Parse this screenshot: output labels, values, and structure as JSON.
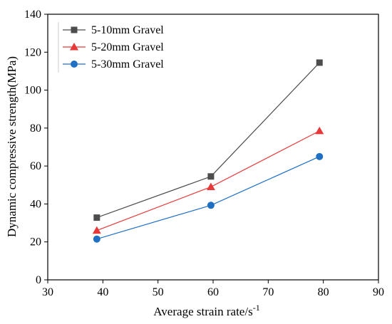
{
  "chart_data": {
    "type": "line",
    "title": "",
    "xlabel": "Average strain rate/s",
    "xlabel_superscript": "-1",
    "ylabel": "Dynamic compressive strength(MPa)",
    "xlim": [
      30,
      90
    ],
    "ylim": [
      0,
      140
    ],
    "xticks": [
      "30",
      "40",
      "50",
      "60",
      "70",
      "80",
      "90"
    ],
    "yticks": [
      "0",
      "20",
      "40",
      "60",
      "80",
      "100",
      "120",
      "140"
    ],
    "grid": false,
    "legend_position": "top-left",
    "series": [
      {
        "name": "5-10mm Gravel",
        "marker": "square",
        "color": "#4d4d4d",
        "x": [
          38.9,
          59.6,
          79.3
        ],
        "y": [
          32.8,
          54.5,
          114.5
        ]
      },
      {
        "name": "5-20mm Gravel",
        "marker": "triangle",
        "color": "#e8393a",
        "x": [
          38.9,
          59.6,
          79.3
        ],
        "y": [
          26.0,
          49.0,
          78.5
        ]
      },
      {
        "name": "5-30mm Gravel",
        "marker": "circle",
        "color": "#1f6fc5",
        "x": [
          38.9,
          59.6,
          79.3
        ],
        "y": [
          21.5,
          39.3,
          65.0
        ]
      }
    ]
  }
}
